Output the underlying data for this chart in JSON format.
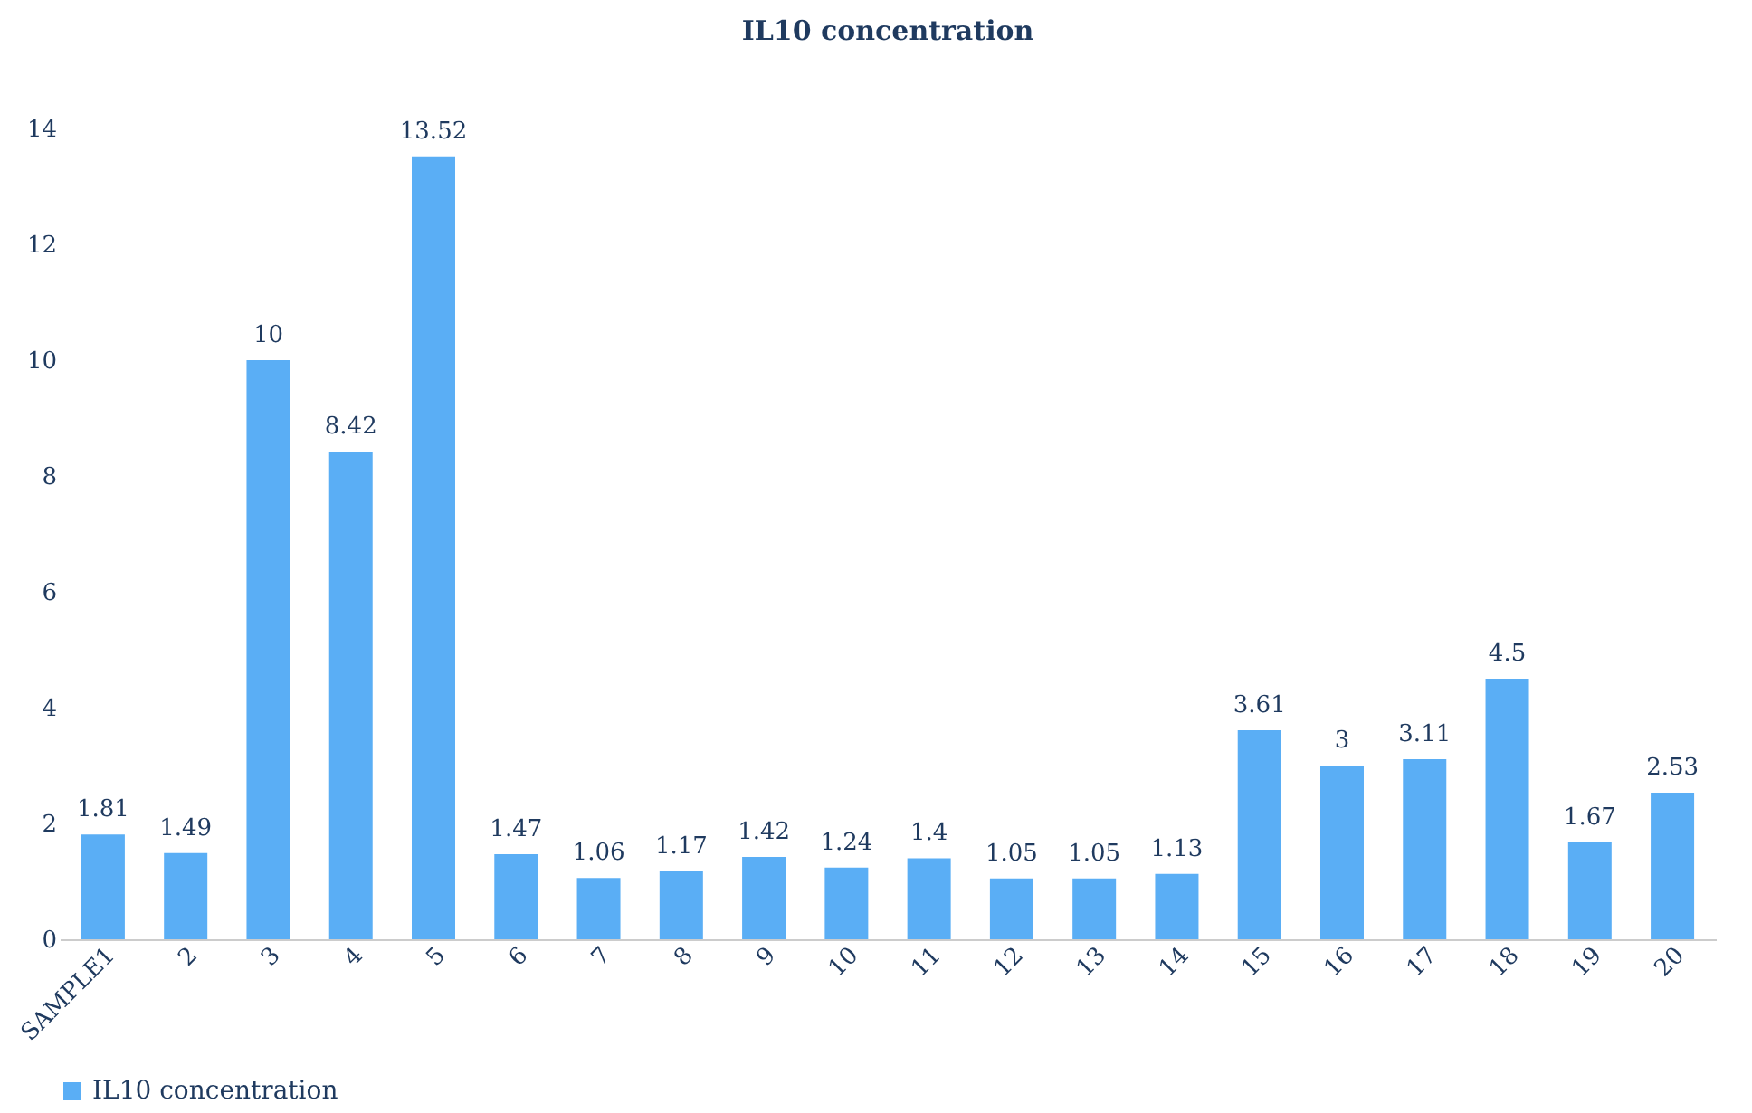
{
  "chart_data": {
    "type": "bar",
    "title": "IL10 concentration",
    "categories": [
      "SAMPLE1",
      "2",
      "3",
      "4",
      "5",
      "6",
      "7",
      "8",
      "9",
      "10",
      "11",
      "12",
      "13",
      "14",
      "15",
      "16",
      "17",
      "18",
      "19",
      "20"
    ],
    "series": [
      {
        "name": "IL10 concentration",
        "color": "#5aaef5",
        "values": [
          1.81,
          1.49,
          10,
          8.42,
          13.52,
          1.47,
          1.06,
          1.17,
          1.42,
          1.24,
          1.4,
          1.05,
          1.05,
          1.13,
          3.61,
          3,
          3.11,
          4.5,
          1.67,
          2.53
        ]
      }
    ],
    "ylim": [
      0,
      14
    ],
    "yticks": [
      0,
      2,
      4,
      6,
      8,
      10,
      12,
      14
    ],
    "grid": false,
    "legend": "bottom",
    "data_labels": true
  }
}
